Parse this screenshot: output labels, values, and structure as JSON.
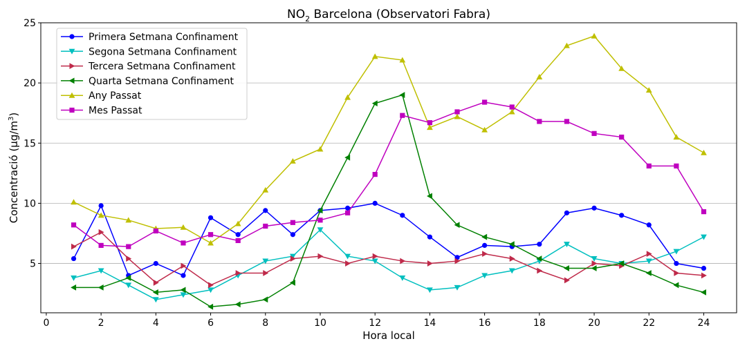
{
  "chart_data": {
    "type": "line",
    "title_main": "NO",
    "title_sub": "2",
    "title_rest": " Barcelona (Observatori Fabra)",
    "xlabel": "Hora local",
    "ylabel_main": "Concentració (μg/m",
    "ylabel_sup": "3",
    "ylabel_end": ")",
    "xlim": [
      -0.2,
      25.2
    ],
    "ylim": [
      0.9,
      25
    ],
    "xticks": [
      0,
      2,
      4,
      6,
      8,
      10,
      12,
      14,
      16,
      18,
      20,
      22,
      24
    ],
    "yticks": [
      5,
      10,
      15,
      20,
      25
    ],
    "grid": "horizontal",
    "legend_position": "top-left",
    "x": [
      1,
      2,
      3,
      4,
      5,
      6,
      7,
      8,
      9,
      10,
      11,
      12,
      13,
      14,
      15,
      16,
      17,
      18,
      19,
      20,
      21,
      22,
      23,
      24
    ],
    "series": [
      {
        "name": "Primera Setmana Confinament",
        "color": "#0000ff",
        "marker": "circle",
        "values": [
          5.4,
          9.8,
          4.0,
          5.0,
          4.0,
          8.8,
          7.4,
          9.4,
          7.4,
          9.4,
          9.6,
          10.0,
          9.0,
          7.2,
          5.5,
          6.5,
          6.4,
          6.6,
          9.2,
          9.6,
          9.0,
          8.2,
          5.0,
          4.6
        ]
      },
      {
        "name": "Segona Setmana Confinament",
        "color": "#00bfbf",
        "marker": "triangle-down",
        "values": [
          3.8,
          4.4,
          3.2,
          2.0,
          2.4,
          2.8,
          4.0,
          5.2,
          5.6,
          7.8,
          5.6,
          5.2,
          3.8,
          2.8,
          3.0,
          4.0,
          4.4,
          5.2,
          6.6,
          5.4,
          5.0,
          5.2,
          6.0,
          7.2
        ]
      },
      {
        "name": "Tercera Setmana Confinament",
        "color": "#bf2a4a",
        "marker": "triangle-right",
        "values": [
          6.4,
          7.6,
          5.4,
          3.4,
          4.8,
          3.2,
          4.2,
          4.2,
          5.4,
          5.6,
          5.0,
          5.6,
          5.2,
          5.0,
          5.2,
          5.8,
          5.4,
          4.4,
          3.6,
          5.0,
          4.8,
          5.8,
          4.2,
          4.0
        ]
      },
      {
        "name": "Quarta Setmana Confinament",
        "color": "#008000",
        "marker": "triangle-left",
        "values": [
          3.0,
          3.0,
          3.8,
          2.6,
          2.8,
          1.4,
          1.6,
          2.0,
          3.4,
          9.4,
          13.8,
          18.3,
          19.0,
          10.6,
          8.2,
          7.2,
          6.6,
          5.4,
          4.6,
          4.6,
          5.0,
          4.2,
          3.2,
          2.6
        ]
      },
      {
        "name": "Any Passat",
        "color": "#bfbf00",
        "marker": "triangle-up",
        "values": [
          10.1,
          9.0,
          8.6,
          7.9,
          8.0,
          6.7,
          8.3,
          11.1,
          13.5,
          14.5,
          18.8,
          22.2,
          21.9,
          16.3,
          17.2,
          16.1,
          17.6,
          20.5,
          23.1,
          23.9,
          21.2,
          19.4,
          15.5,
          14.2
        ]
      },
      {
        "name": "Mes Passat",
        "color": "#bf00bf",
        "marker": "square",
        "values": [
          8.2,
          6.5,
          6.4,
          7.7,
          6.7,
          7.4,
          6.9,
          8.1,
          8.4,
          8.6,
          9.2,
          12.4,
          17.3,
          16.7,
          17.6,
          18.4,
          18.0,
          16.8,
          16.8,
          15.8,
          15.5,
          13.1,
          13.1,
          9.3
        ]
      }
    ]
  }
}
